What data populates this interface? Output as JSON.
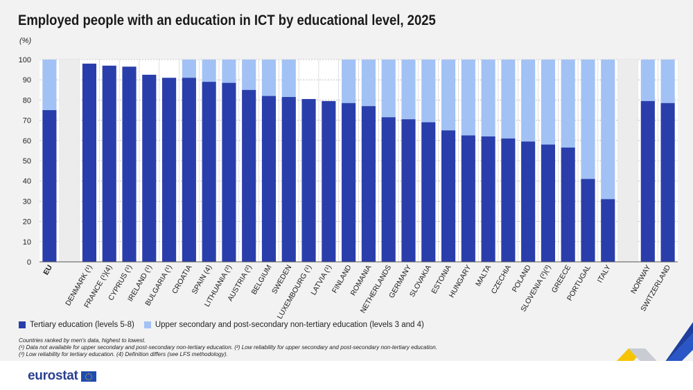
{
  "header": {
    "title": "Employed people with an education in ICT by educational level, 2025",
    "unit": "(%)"
  },
  "colors": {
    "tertiary": "#2a3eab",
    "upper_secondary": "#a2c2f5"
  },
  "legend": {
    "tertiary": "Tertiary education (levels 5-8)",
    "upper_secondary": "Upper secondary and post-secondary non-tertiary education (levels 3 and 4)"
  },
  "notes": [
    "Countries ranked by men's data, highest to lowest.",
    "(¹) Data not available for upper secondary and post-secondary non-tertiary education. (²) Low reliability for upper secondary and post-secondary non-tertiary education.",
    "(³) Low reliability for tertiary education. (4) Definition differs (see LFS methodology)."
  ],
  "footer": {
    "brand": "eurostat"
  },
  "chart_data": {
    "type": "bar",
    "stacked": true,
    "ylim": [
      0,
      100
    ],
    "yticks": [
      0,
      10,
      20,
      30,
      40,
      50,
      60,
      70,
      80,
      90,
      100
    ],
    "categories": [
      "EU",
      "",
      "DENMARK (¹)",
      "FRANCE (¹)(4)",
      "CYPRUS (¹)",
      "IRELAND (¹)",
      "BULGARIA (¹)",
      "CROATIA",
      "SPAIN (4)",
      "LITHUANIA (²)",
      "AUSTRIA (²)",
      "BELGIUM",
      "SWEDEN",
      "LUXEMBOURG (¹)",
      "LATVIA (¹)",
      "FINLAND",
      "ROMANIA",
      "NETHERLANDS",
      "GERMANY",
      "SLOVAKIA",
      "ESTONIA",
      "HUNGARY",
      "MALTA",
      "CZECHIA",
      "POLAND",
      "SLOVENIA (²)(³)",
      "GREECE",
      "PORTUGAL",
      "ITALY",
      "",
      "NORWAY",
      "SWITZERLAND"
    ],
    "series": [
      {
        "name": "Tertiary education (levels 5-8)",
        "values": [
          75,
          null,
          98,
          97,
          96.5,
          92.5,
          91,
          91,
          89,
          88.5,
          85,
          82,
          81.5,
          80.5,
          79.5,
          78.5,
          77,
          71.5,
          70.5,
          69,
          65,
          62.5,
          62,
          61,
          59.5,
          58,
          56.5,
          41,
          31,
          null,
          79.5,
          78.5
        ]
      },
      {
        "name": "Upper secondary and post-secondary non-tertiary education (levels 3 and 4)",
        "values": [
          25,
          null,
          null,
          null,
          null,
          null,
          null,
          9,
          11,
          11.5,
          15,
          18,
          18.5,
          null,
          null,
          21.5,
          23,
          28.5,
          29.5,
          31,
          35,
          37.5,
          38,
          39,
          40.5,
          42,
          43.5,
          59,
          69,
          null,
          20.5,
          21.5
        ]
      }
    ],
    "grid": true,
    "legend_position": "bottom-left"
  }
}
